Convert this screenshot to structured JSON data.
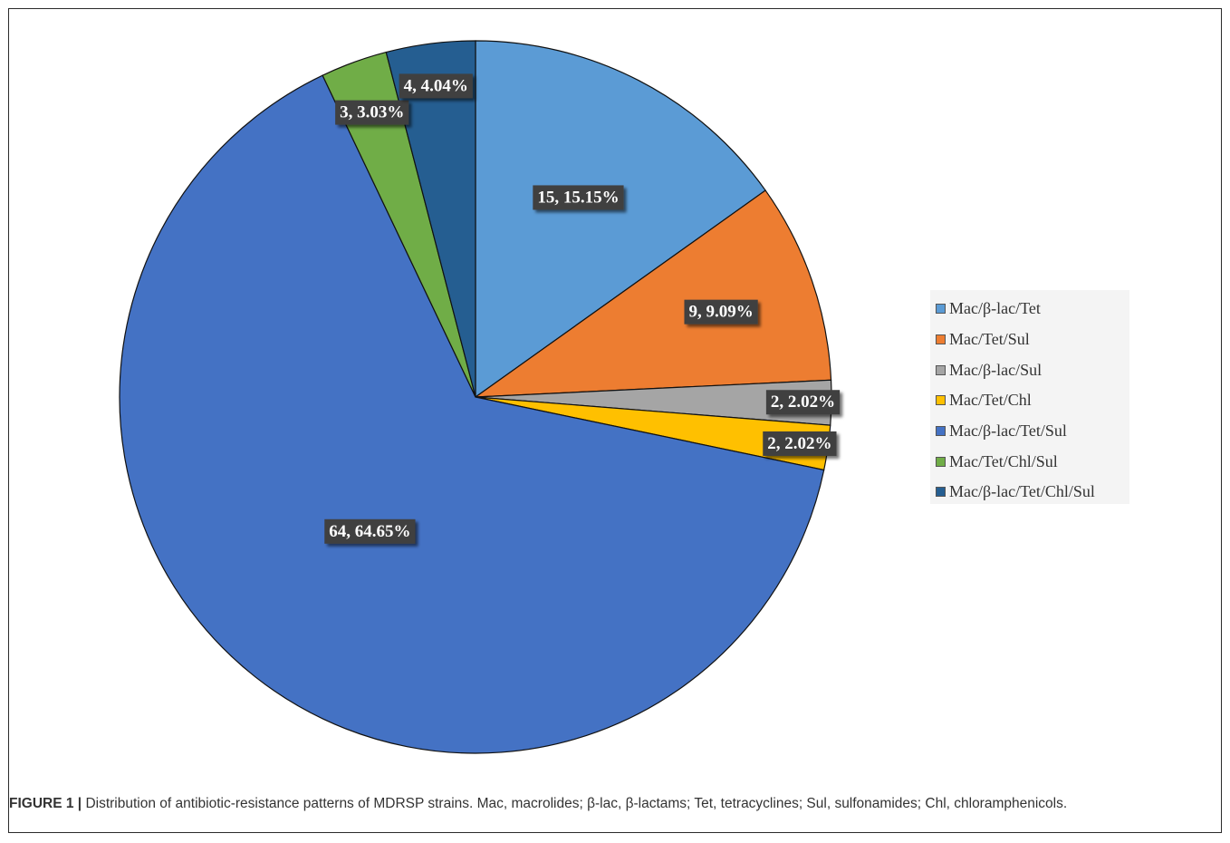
{
  "chart_data": {
    "type": "pie",
    "title": "",
    "categories": [
      "Mac/β-lac/Tet",
      "Mac/Tet/Sul",
      "Mac/β-lac/Sul",
      "Mac/Tet/Chl",
      "Mac/β-lac/Tet/Sul",
      "Mac/Tet/Chl/Sul",
      "Mac/β-lac/Tet/Chl/Sul"
    ],
    "values": [
      15,
      9,
      2,
      2,
      64,
      3,
      4
    ],
    "percents": [
      "15.15%",
      "9.09%",
      "2.02%",
      "2.02%",
      "64.65%",
      "3.03%",
      "4.04%"
    ],
    "data_labels": [
      "15, 15.15%",
      "9, 9.09%",
      "2, 2.02%",
      "2, 2.02%",
      "64, 64.65%",
      "3, 3.03%",
      "4, 4.04%"
    ],
    "colors": [
      "#5b9bd5",
      "#ed7d31",
      "#a5a5a5",
      "#ffc000",
      "#4472c4",
      "#70ad47",
      "#255e91"
    ],
    "start_angle_deg": 0,
    "direction": "clockwise",
    "legend_position": "right"
  },
  "caption": {
    "label": "FIGURE 1 |",
    "text": " Distribution of antibiotic-resistance patterns of MDRSP strains. Mac, macrolides; β-lac, β-lactams; Tet, tetracyclines; Sul, sulfonamides; Chl, chloramphenicols."
  }
}
